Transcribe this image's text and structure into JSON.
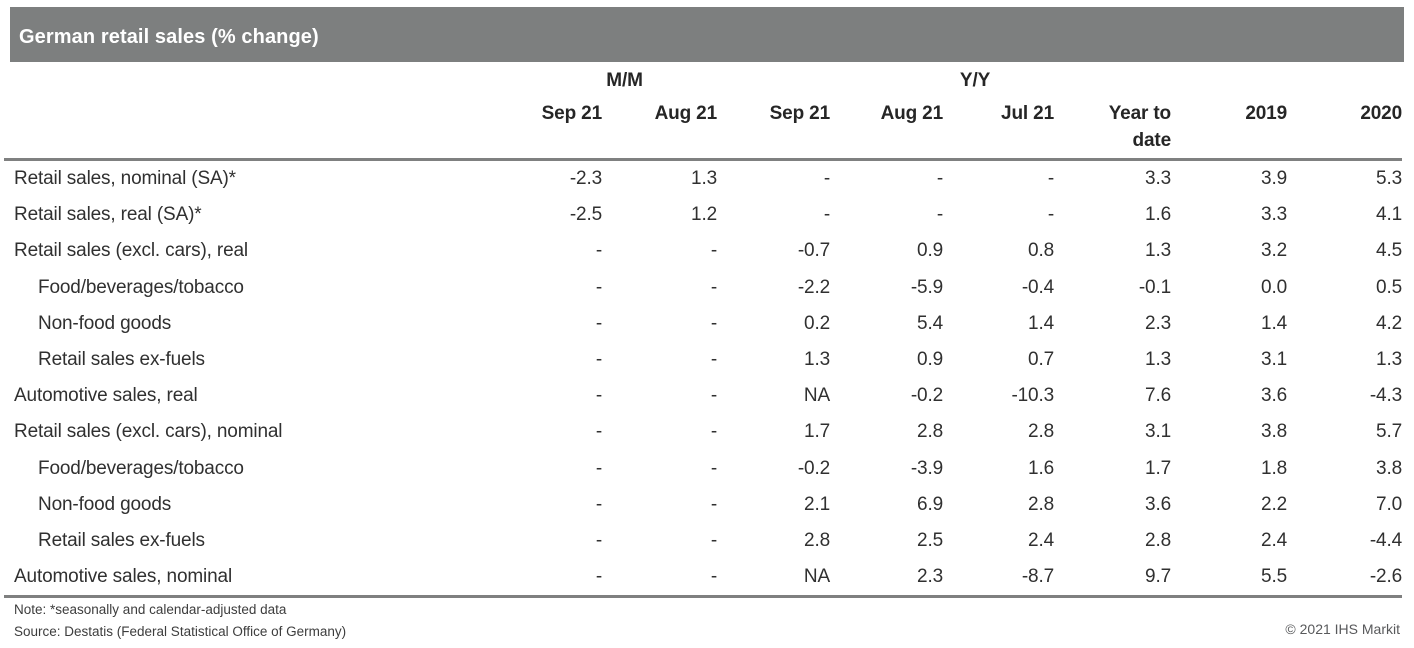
{
  "colors": {
    "header_bar": "#7d7f7f",
    "rule": "#7f8080",
    "table_text": "#303030",
    "header_text": "#262626",
    "title_text": "#ffffff",
    "footer_text": "#3d3d3d",
    "copyright_text": "#58595b"
  },
  "chart_data": {
    "type": "table",
    "title": "German retail sales (% change)",
    "column_groups": [
      {
        "label": "M/M",
        "span": 2
      },
      {
        "label": "Y/Y",
        "span": 4
      }
    ],
    "columns": [
      "Sep 21",
      "Aug 21",
      "Sep 21",
      "Aug 21",
      "Jul 21",
      "Year to\ndate",
      "2019",
      "2020"
    ],
    "rows": [
      {
        "label": "Retail sales, nominal (SA)*",
        "indent": false,
        "values": [
          "-2.3",
          "1.3",
          "-",
          "-",
          "-",
          "3.3",
          "3.9",
          "5.3"
        ]
      },
      {
        "label": "Retail sales, real (SA)*",
        "indent": false,
        "values": [
          "-2.5",
          "1.2",
          "-",
          "-",
          "-",
          "1.6",
          "3.3",
          "4.1"
        ]
      },
      {
        "label": "Retail sales (excl. cars), real",
        "indent": false,
        "values": [
          "-",
          "-",
          "-0.7",
          "0.9",
          "0.8",
          "1.3",
          "3.2",
          "4.5"
        ]
      },
      {
        "label": "Food/beverages/tobacco",
        "indent": true,
        "values": [
          "-",
          "-",
          "-2.2",
          "-5.9",
          "-0.4",
          "-0.1",
          "0.0",
          "0.5"
        ]
      },
      {
        "label": "Non-food goods",
        "indent": true,
        "values": [
          "-",
          "-",
          "0.2",
          "5.4",
          "1.4",
          "2.3",
          "1.4",
          "4.2"
        ]
      },
      {
        "label": "Retail sales ex-fuels",
        "indent": true,
        "values": [
          "-",
          "-",
          "1.3",
          "0.9",
          "0.7",
          "1.3",
          "3.1",
          "1.3"
        ]
      },
      {
        "label": "Automotive sales, real",
        "indent": false,
        "values": [
          "-",
          "-",
          "NA",
          "-0.2",
          "-10.3",
          "7.6",
          "3.6",
          "-4.3"
        ]
      },
      {
        "label": "Retail sales (excl. cars), nominal",
        "indent": false,
        "values": [
          "-",
          "-",
          "1.7",
          "2.8",
          "2.8",
          "3.1",
          "3.8",
          "5.7"
        ]
      },
      {
        "label": "Food/beverages/tobacco",
        "indent": true,
        "values": [
          "-",
          "-",
          "-0.2",
          "-3.9",
          "1.6",
          "1.7",
          "1.8",
          "3.8"
        ]
      },
      {
        "label": "Non-food goods",
        "indent": true,
        "values": [
          "-",
          "-",
          "2.1",
          "6.9",
          "2.8",
          "3.6",
          "2.2",
          "7.0"
        ]
      },
      {
        "label": "Retail sales ex-fuels",
        "indent": true,
        "values": [
          "-",
          "-",
          "2.8",
          "2.5",
          "2.4",
          "2.8",
          "2.4",
          "-4.4"
        ]
      },
      {
        "label": "Automotive sales, nominal",
        "indent": false,
        "values": [
          "-",
          "-",
          "NA",
          "2.3",
          "-8.7",
          "9.7",
          "5.5",
          "-2.6"
        ]
      }
    ],
    "note": "Note: *seasonally and calendar-adjusted data",
    "source": "Source: Destatis (Federal Statistical Office of Germany)",
    "copyright": "© 2021 IHS Markit"
  }
}
